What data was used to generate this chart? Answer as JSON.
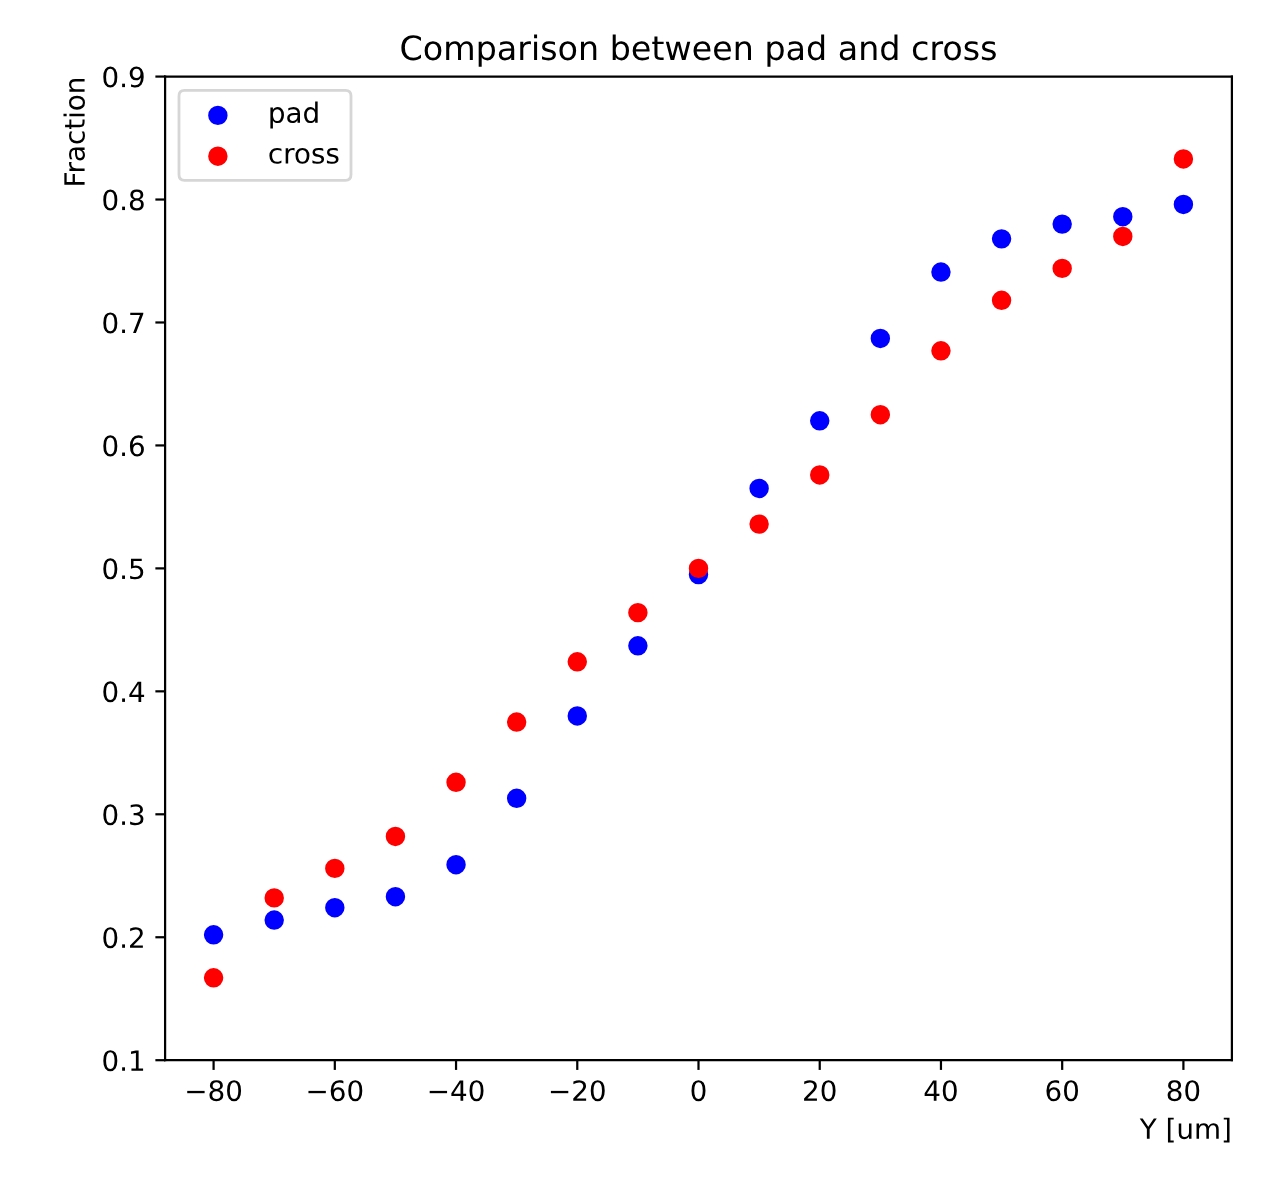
{
  "chart_data": {
    "type": "scatter",
    "title": "Comparison between pad and cross",
    "xlabel": "Y [um]",
    "ylabel": "Fraction",
    "x": [
      -80,
      -70,
      -60,
      -50,
      -40,
      -30,
      -20,
      -10,
      0,
      10,
      20,
      30,
      40,
      50,
      60,
      70,
      80
    ],
    "series": [
      {
        "name": "pad",
        "color": "#0000ff",
        "values": [
          0.202,
          0.214,
          0.224,
          0.233,
          0.259,
          0.313,
          0.38,
          0.437,
          0.495,
          0.565,
          0.62,
          0.687,
          0.741,
          0.768,
          0.78,
          0.786,
          0.796
        ]
      },
      {
        "name": "cross",
        "color": "#ff0000",
        "values": [
          0.167,
          0.232,
          0.256,
          0.282,
          0.326,
          0.375,
          0.424,
          0.464,
          0.5,
          0.536,
          0.576,
          0.625,
          0.677,
          0.718,
          0.744,
          0.77,
          0.833
        ]
      }
    ],
    "xlim": [
      -88,
      88
    ],
    "ylim": [
      0.1,
      0.9
    ],
    "xticks": [
      {
        "value": -80,
        "label": "−80"
      },
      {
        "value": -60,
        "label": "−60"
      },
      {
        "value": -40,
        "label": "−40"
      },
      {
        "value": -20,
        "label": "−20"
      },
      0,
      20,
      40,
      60,
      80
    ],
    "yticks": [
      0.1,
      0.2,
      0.3,
      0.4,
      0.5,
      0.6,
      0.7,
      0.8,
      0.9
    ],
    "legend": "upper left",
    "marker": "circle",
    "grid": false
  }
}
